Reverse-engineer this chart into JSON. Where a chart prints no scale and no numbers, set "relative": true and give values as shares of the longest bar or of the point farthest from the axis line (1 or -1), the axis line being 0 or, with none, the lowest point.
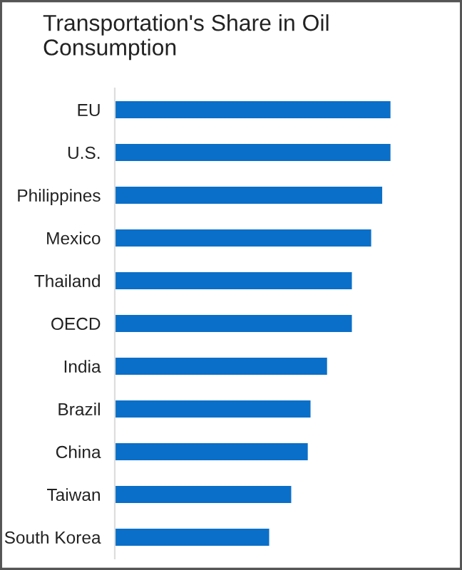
{
  "chart_data": {
    "type": "bar",
    "orientation": "horizontal",
    "relative": true,
    "title": "Transportation's Share in Oil Consumption",
    "categories": [
      "EU",
      "U.S.",
      "Philippines",
      "Mexico",
      "Thailand",
      "OECD",
      "India",
      "Brazil",
      "China",
      "Taiwan",
      "South Korea"
    ],
    "values": [
      1,
      1,
      0.97,
      0.93,
      0.86,
      0.86,
      0.77,
      0.71,
      0.7,
      0.64,
      0.56
    ],
    "color": "#0a6fc8",
    "grid": false,
    "legend": false
  }
}
